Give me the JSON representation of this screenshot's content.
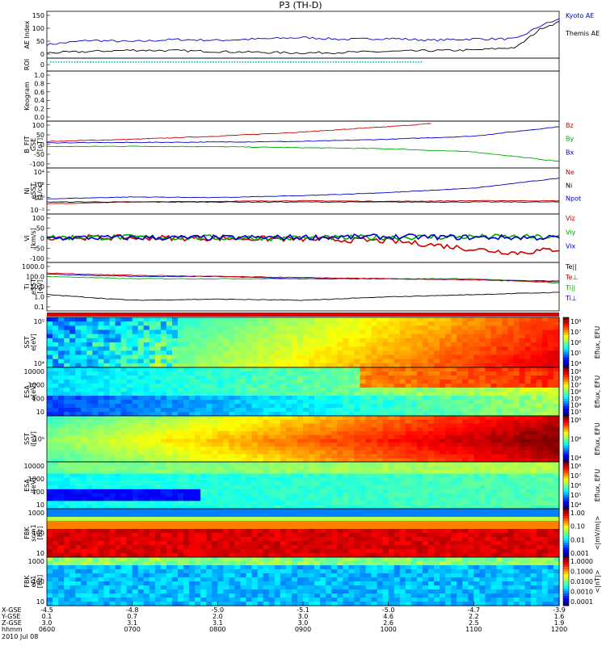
{
  "chart_data": {
    "title": "P3 (TH-D)",
    "type": "multi-panel time series and spectrograms",
    "x_axis": {
      "rows": [
        {
          "label": "X-GSE",
          "values": [
            "-4.5",
            "-4.8",
            "-5.0",
            "-5.1",
            "-5.0",
            "-4.7",
            "-3.9"
          ]
        },
        {
          "label": "Y-GSE",
          "values": [
            "0.1",
            "0.7",
            "2.0",
            "3.0",
            "4.6",
            "2.2",
            "1.6"
          ]
        },
        {
          "label": "Z-GSE",
          "values": [
            "3.0",
            "3.1",
            "3.1",
            "3.0",
            "2.6",
            "2.5",
            "1.9"
          ]
        },
        {
          "label": "hhmm",
          "values": [
            "0600",
            "0700",
            "0800",
            "0900",
            "1000",
            "1100",
            "1200"
          ]
        }
      ],
      "date": "2010 Jul 08"
    },
    "panels": [
      {
        "id": "ae",
        "ylabel": "AE Index",
        "type": "line",
        "yticks": [
          "150",
          "100",
          "50",
          "0"
        ],
        "ylim": [
          0,
          150
        ],
        "legend": [
          {
            "name": "Kyoto AE",
            "color": "#0000cc"
          },
          {
            "name": "Themis AE",
            "color": "#000000"
          }
        ],
        "series": [
          {
            "name": "Kyoto AE",
            "color": "#0000cc",
            "x": [
              0,
              0.5,
              1,
              1.5,
              2,
              2.5,
              3,
              3.5,
              4,
              4.5,
              5,
              5.5,
              5.8,
              6
            ],
            "y": [
              40,
              55,
              50,
              58,
              55,
              60,
              65,
              58,
              62,
              55,
              60,
              60,
              110,
              130
            ]
          },
          {
            "name": "Themis AE",
            "color": "#000000",
            "x": [
              0,
              0.5,
              1,
              1.5,
              2,
              2.5,
              3,
              3.5,
              4,
              4.5,
              5,
              5.5,
              5.8,
              6
            ],
            "y": [
              10,
              15,
              20,
              18,
              15,
              12,
              10,
              12,
              15,
              18,
              20,
              30,
              100,
              120
            ]
          }
        ]
      },
      {
        "id": "roi",
        "ylabel": "ROI",
        "type": "flag",
        "yticks": [
          "0"
        ]
      },
      {
        "id": "keogram",
        "ylabel": "Keogram",
        "type": "empty",
        "yticks": [
          "1.0",
          "0.8",
          "0.6",
          "0.4",
          "0.2",
          "0.0"
        ]
      },
      {
        "id": "bfit",
        "ylabel": "B_FIT",
        "sublabels": [
          "GSE",
          "[nT]"
        ],
        "type": "line",
        "yticks": [
          "100",
          "50",
          "0",
          "-50",
          "-100"
        ],
        "ylim": [
          -100,
          100
        ],
        "legend": [
          {
            "name": "Bz",
            "color": "#cc0000"
          },
          {
            "name": "By",
            "color": "#00aa00"
          },
          {
            "name": "Bx",
            "color": "#0000cc"
          }
        ],
        "series": [
          {
            "name": "Bz",
            "color": "#cc0000",
            "x": [
              0,
              1,
              2,
              3,
              4,
              4.5
            ],
            "y": [
              15,
              25,
              40,
              60,
              85,
              100
            ]
          },
          {
            "name": "By",
            "color": "#00aa00",
            "x": [
              0,
              1,
              2,
              3,
              4,
              5,
              6
            ],
            "y": [
              -10,
              -8,
              -10,
              -15,
              -20,
              -35,
              -80
            ]
          },
          {
            "name": "Bx",
            "color": "#0000cc",
            "x": [
              0,
              1,
              2,
              3,
              4,
              5,
              6
            ],
            "y": [
              8,
              10,
              12,
              15,
              25,
              40,
              85
            ]
          }
        ]
      },
      {
        "id": "ni",
        "ylabel": "Ni",
        "sublabels": [
          "eSST",
          "[1/cc]"
        ],
        "type": "line",
        "yticks": [
          "10⁴",
          "10²",
          "10⁰",
          "10⁻²"
        ],
        "legend": [
          {
            "name": "Ne",
            "color": "#cc0000"
          },
          {
            "name": "Ni",
            "color": "#000000"
          },
          {
            "name": "Npot",
            "color": "#0000cc"
          }
        ],
        "series": [
          {
            "name": "Ne",
            "color": "#cc0000",
            "x": [
              0,
              1,
              2,
              3,
              4,
              5,
              6
            ],
            "y": [
              -0.3,
              0,
              0.1,
              0.2,
              0.1,
              0.2,
              0.2
            ]
          },
          {
            "name": "Ni",
            "color": "#000000",
            "x": [
              0,
              1,
              2,
              3,
              4,
              5,
              6
            ],
            "y": [
              0,
              0,
              0,
              0,
              0,
              0,
              0
            ]
          },
          {
            "name": "Npot",
            "color": "#0000cc",
            "x": [
              0,
              1,
              2,
              3,
              4,
              5,
              6
            ],
            "y": [
              0.5,
              0.8,
              0.7,
              1.0,
              1.5,
              2.2,
              3.8
            ]
          }
        ]
      },
      {
        "id": "vi",
        "ylabel": "Vi",
        "sublabels": [
          "[km/s]"
        ],
        "type": "line",
        "yticks": [
          "100",
          "50",
          "0",
          "-50",
          "-100"
        ],
        "ylim": [
          -120,
          120
        ],
        "legend": [
          {
            "name": "Viz",
            "color": "#cc0000"
          },
          {
            "name": "Viy",
            "color": "#00aa00"
          },
          {
            "name": "Vix",
            "color": "#0000cc"
          }
        ],
        "series": [
          {
            "name": "Viz",
            "color": "#cc0000",
            "x": [
              0,
              1,
              2,
              3,
              4,
              4.5,
              5,
              5.5,
              6
            ],
            "y": [
              5,
              3,
              0,
              -5,
              -15,
              -35,
              -60,
              -80,
              -60
            ]
          },
          {
            "name": "Viy",
            "color": "#00aa00",
            "x": [
              0,
              1,
              2,
              3,
              4,
              5,
              6
            ],
            "y": [
              5,
              5,
              3,
              0,
              5,
              8,
              5
            ]
          },
          {
            "name": "Vix",
            "color": "#0000cc",
            "x": [
              0,
              1,
              2,
              3,
              4,
              5,
              6
            ],
            "y": [
              2,
              3,
              2,
              5,
              8,
              5,
              3
            ]
          }
        ]
      },
      {
        "id": "ti",
        "ylabel": "Ti",
        "sublabels": [
          "eSST",
          "[eV]"
        ],
        "type": "line",
        "yticks": [
          "1000.0",
          "100.0",
          "10.0",
          "1.0",
          "0.1"
        ],
        "legend": [
          {
            "name": "Te||",
            "color": "#000000"
          },
          {
            "name": "Te⊥",
            "color": "#cc0000"
          },
          {
            "name": "Ti||",
            "color": "#00aa00"
          },
          {
            "name": "Ti⊥",
            "color": "#0000cc"
          }
        ],
        "series": [
          {
            "name": "Te||",
            "color": "#000000",
            "x": [
              0,
              1,
              2,
              3,
              4,
              5,
              6
            ],
            "y": [
              2.3,
              2.05,
              2.1,
              2.05,
              2.2,
              2.3,
              2.4
            ]
          },
          {
            "name": "Ti||",
            "color": "#00aa00",
            "x": [
              0,
              1,
              2,
              3,
              4,
              5,
              6
            ],
            "y": [
              3.1,
              3.0,
              3.0,
              3.0,
              3.0,
              3.0,
              2.8
            ]
          },
          {
            "name": "Ti⊥",
            "color": "#0000cc",
            "x": [
              0,
              1,
              2,
              3,
              4,
              5,
              6
            ],
            "y": [
              3.2,
              3.1,
              3.1,
              3.0,
              3.0,
              2.95,
              2.9
            ]
          },
          {
            "name": "Te⊥",
            "color": "#cc0000",
            "x": [
              0,
              1,
              2,
              3,
              4,
              5,
              6
            ],
            "y": [
              3.25,
              3.15,
              3.1,
              3.05,
              3.0,
              2.95,
              2.85
            ]
          }
        ]
      },
      {
        "id": "sst_e",
        "ylabel": "SST",
        "sublabels": [
          "e[eV]"
        ],
        "type": "spectrogram",
        "yticks": [
          "10⁵",
          "10⁴"
        ],
        "colorbar": {
          "label": "Eflux, EFU",
          "ticks": [
            "10⁸",
            "10⁷",
            "10⁶",
            "10⁵",
            "10⁴"
          ]
        }
      },
      {
        "id": "esa_e",
        "ylabel": "ESA",
        "sublabels": [
          "e[eV]"
        ],
        "type": "spectrogram",
        "yticks": [
          "10000",
          "1000",
          "100",
          "10"
        ],
        "colorbar": {
          "label": "Eflux, EFU",
          "ticks": [
            "10⁹",
            "10⁸",
            "10⁷",
            "10⁶",
            "10⁵",
            "10⁴",
            "10³"
          ]
        }
      },
      {
        "id": "sst_i",
        "ylabel": "SST",
        "sublabels": [
          "i[eV]"
        ],
        "type": "spectrogram",
        "yticks": [
          "10⁵"
        ],
        "colorbar": {
          "label": "Eflux, EFU",
          "ticks": [
            "10⁸",
            "10⁶",
            "10⁴"
          ]
        }
      },
      {
        "id": "esa_i",
        "ylabel": "ESA",
        "sublabels": [
          "i[eV]"
        ],
        "type": "spectrogram",
        "yticks": [
          "10000",
          "1000",
          "100",
          "10"
        ],
        "colorbar": {
          "label": "Eflux, EFU",
          "ticks": [
            "10⁸",
            "10⁷",
            "10⁶",
            "10⁵",
            "10⁴"
          ]
        }
      },
      {
        "id": "fbk_scm",
        "ylabel": "FBK",
        "sublabels": [
          "scm1",
          "[Hz]"
        ],
        "type": "spectrogram",
        "yticks": [
          "1000",
          "100",
          "10"
        ],
        "colorbar": {
          "label": "<|mV/m|>",
          "ticks": [
            "1.00",
            "0.10",
            "0.01",
            "0.001"
          ]
        }
      },
      {
        "id": "fbk_efi",
        "ylabel": "FBK",
        "sublabels": [
          "efi1",
          "[Hz]"
        ],
        "type": "spectrogram",
        "yticks": [
          "1000",
          "100",
          "10"
        ],
        "colorbar": {
          "label": "<|nT|>",
          "ticks": [
            "1.0000",
            "0.1000",
            "0.0100",
            "0.0010",
            "0.0001"
          ]
        }
      }
    ]
  }
}
